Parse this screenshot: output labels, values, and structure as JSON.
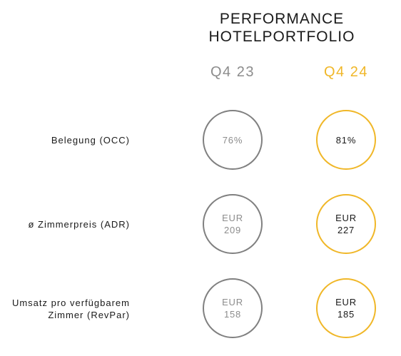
{
  "title": {
    "line1": "PERFORMANCE",
    "line2": "HOTELPORTFOLIO"
  },
  "columns": {
    "q4_23": "Q4 23",
    "q4_24": "Q4 24"
  },
  "accent_color": "#f0b728",
  "muted_color": "#8c8c8c",
  "rows": [
    {
      "label_lines": [
        "Belegung (OCC)"
      ],
      "q4_23": [
        "76%"
      ],
      "q4_24": [
        "81%"
      ]
    },
    {
      "label_lines": [
        "ø Zimmerpreis (ADR)"
      ],
      "q4_23": [
        "EUR",
        "209"
      ],
      "q4_24": [
        "EUR",
        "227"
      ]
    },
    {
      "label_lines": [
        "Umsatz pro verfügbarem",
        "Zimmer (RevPar)"
      ],
      "q4_23": [
        "EUR",
        "158"
      ],
      "q4_24": [
        "EUR",
        "185"
      ]
    }
  ]
}
